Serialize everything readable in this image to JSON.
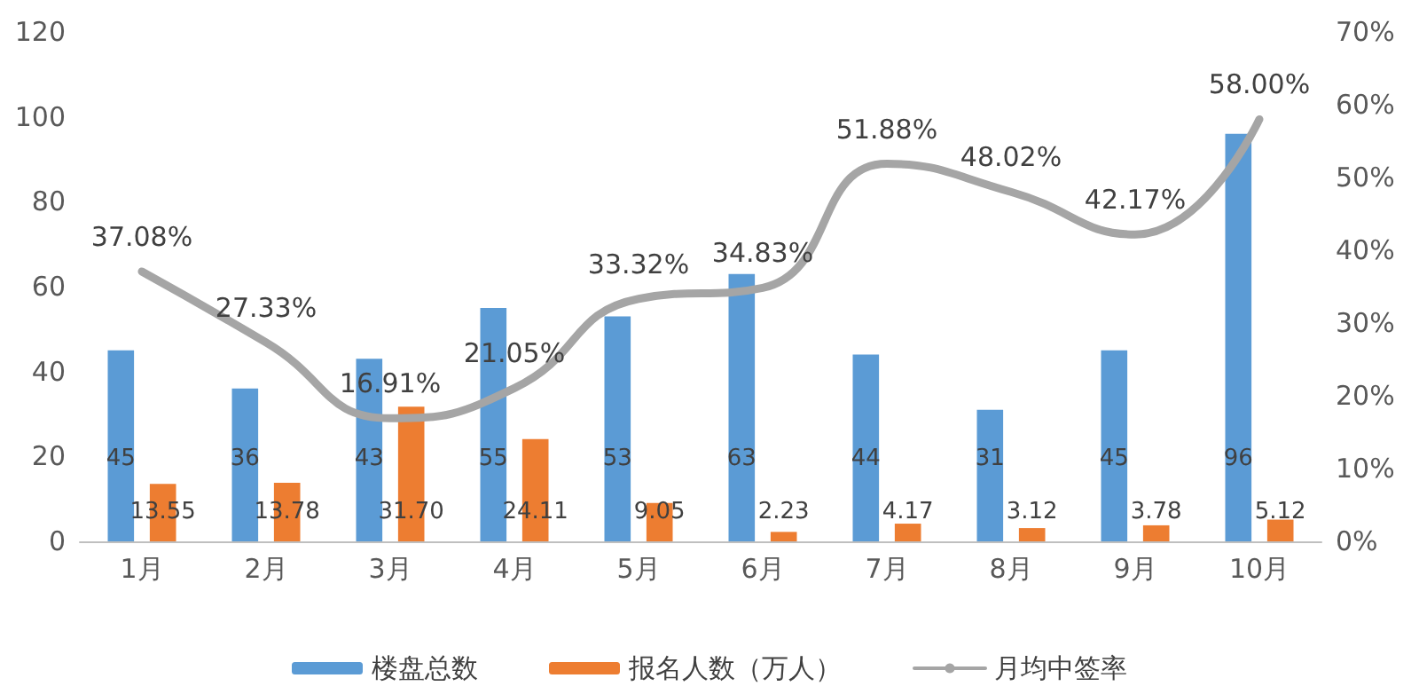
{
  "chart_data": {
    "type": "bar",
    "categories": [
      "1月",
      "2月",
      "3月",
      "4月",
      "5月",
      "6月",
      "7月",
      "8月",
      "9月",
      "10月"
    ],
    "series": [
      {
        "name": "楼盘总数",
        "color": "#5b9bd5",
        "values": [
          45,
          36,
          43,
          55,
          53,
          63,
          44,
          31,
          45,
          96
        ],
        "value_labels": [
          "45",
          "36",
          "43",
          "55",
          "53",
          "63",
          "44",
          "31",
          "45",
          "96"
        ]
      },
      {
        "name": "报名人数（万人）",
        "color": "#ed7d31",
        "values": [
          13.55,
          13.78,
          31.7,
          24.11,
          9.05,
          2.23,
          4.17,
          3.12,
          3.78,
          5.12
        ],
        "value_labels": [
          "13.55",
          "13.78",
          "31.70",
          "24.11",
          "9.05",
          "2.23",
          "4.17",
          "3.12",
          "3.78",
          "5.12"
        ]
      },
      {
        "name": "月均中签率",
        "type": "line",
        "axis": "y2",
        "color": "#a5a5a5",
        "values": [
          37.08,
          27.33,
          16.91,
          21.05,
          33.32,
          34.83,
          51.88,
          48.02,
          42.17,
          58.0
        ],
        "value_labels": [
          "37.08%",
          "27.33%",
          "16.91%",
          "21.05%",
          "33.32%",
          "34.83%",
          "51.88%",
          "48.02%",
          "42.17%",
          "58.00%"
        ]
      }
    ],
    "ylim": [
      0,
      120
    ],
    "yticks": [
      0,
      20,
      40,
      60,
      80,
      100,
      120
    ],
    "y2lim": [
      0,
      70
    ],
    "y2ticks": [
      {
        "value": 0,
        "label": "0%"
      },
      {
        "value": 10,
        "label": "10%"
      },
      {
        "value": 20,
        "label": "20%"
      },
      {
        "value": 30,
        "label": "30%"
      },
      {
        "value": 40,
        "label": "40%"
      },
      {
        "value": 50,
        "label": "50%"
      },
      {
        "value": 60,
        "label": "60%"
      },
      {
        "value": 70,
        "label": "70%"
      }
    ],
    "grid": false,
    "legend": "bottom",
    "marker": "none",
    "line_style": "solid"
  }
}
